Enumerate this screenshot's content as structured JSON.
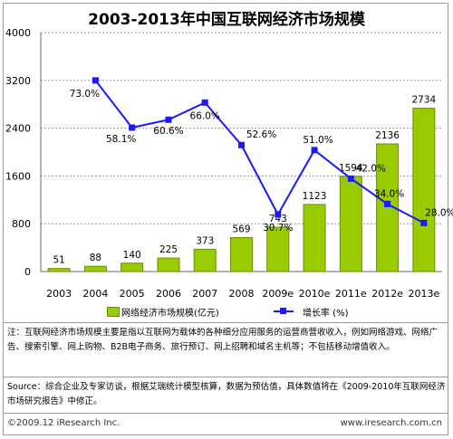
{
  "chart_data": {
    "title": "2003-2013年中国互联网经济市场规模",
    "type": "bar+line",
    "categories": [
      "2003",
      "2004",
      "2005",
      "2006",
      "2007",
      "2008",
      "2009e",
      "2010e",
      "2011e",
      "2012e",
      "2013e"
    ],
    "series": [
      {
        "name": "网络经济市场规模(亿元)",
        "type": "bar",
        "axis": "left",
        "values": [
          51,
          88,
          140,
          225,
          373,
          569,
          743,
          1123,
          1594,
          2136,
          2734
        ],
        "labels": [
          "51",
          "88",
          "140",
          "225",
          "373",
          "569",
          "743",
          "1123",
          "1594",
          "2136",
          "2734"
        ]
      },
      {
        "name": "增长率 (%)",
        "type": "line",
        "axis": "right",
        "values": [
          null,
          73.0,
          58.1,
          60.6,
          66.0,
          52.6,
          30.7,
          51.0,
          42.0,
          34.0,
          28.0
        ],
        "labels": [
          "",
          "73.0%",
          "58.1%",
          "60.6%",
          "66.0%",
          "52.6%",
          "30.7%",
          "51.0%",
          "42.0%",
          "34.0%",
          "28.0%"
        ]
      }
    ],
    "yticks": [
      "0",
      "800",
      "1600",
      "2400",
      "3200",
      "4000"
    ],
    "ylim": [
      0,
      4000
    ],
    "grid": "horizontal dotted",
    "legend_position": "bottom",
    "colors": {
      "bar": "#99cc00",
      "bar_edge": "#6a8f00",
      "line": "#1a1aff"
    }
  },
  "note": "注：互联网经济市场规模主要是指以互联网为载体的各种细分应用服务的运营商营收收入，例如网络游戏、网络广告、搜索引擎、网上购物、B2B电子商务、旅行预订、网上招聘和域名主机等；不包括移动增值收入。",
  "source": "Source：综合企业及专家访谈，根据艾瑞统计模型核算，数据为预估值，具体数值将在《2009-2010年互联网经济市场研究报告》中修正。",
  "footer": {
    "copyright": "©2009.12 iResearch Inc.",
    "url": "www.iresearch.com.cn"
  }
}
